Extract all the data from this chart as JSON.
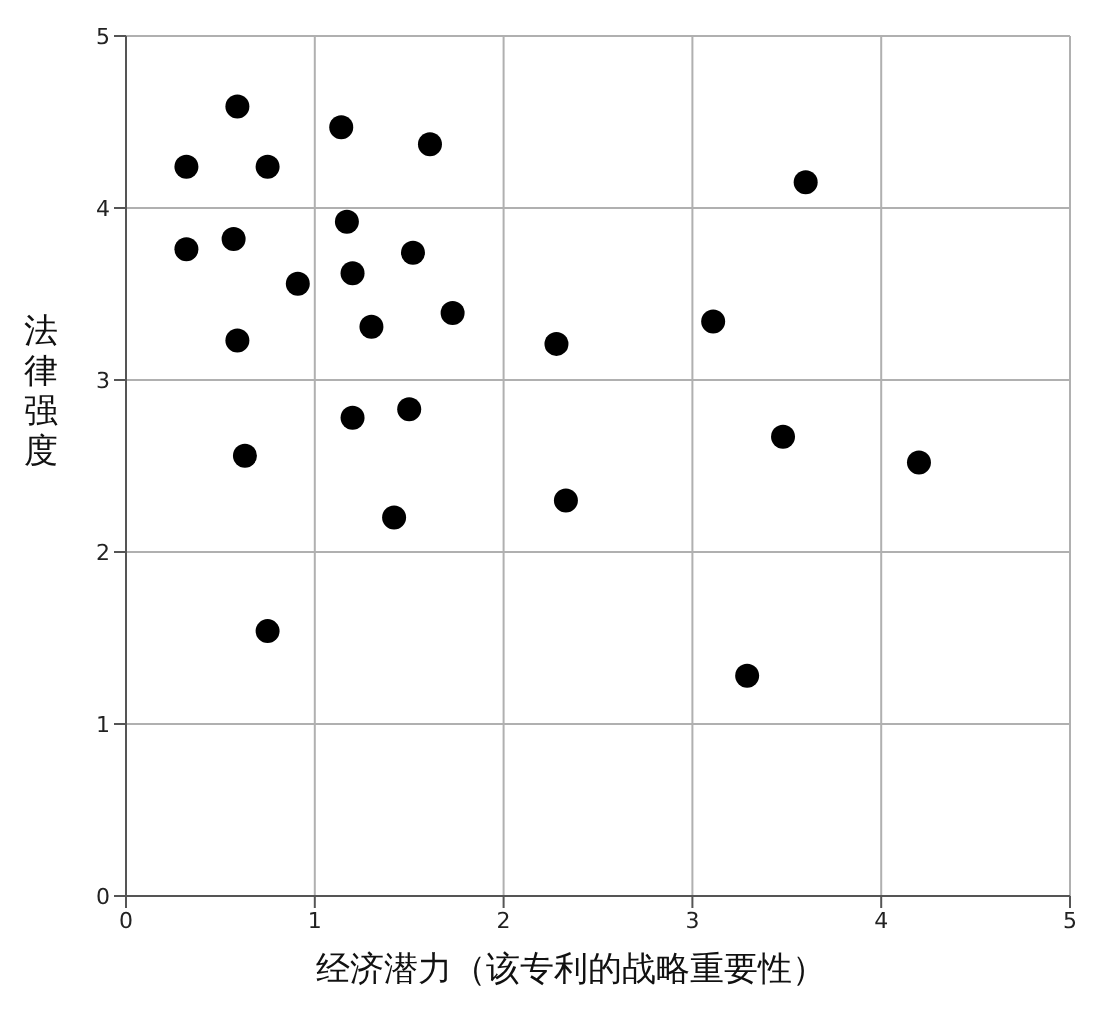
{
  "chart_data": {
    "type": "scatter",
    "xlabel": "经济潜力（该专利的战略重要性）",
    "ylabel": "法律强度",
    "xlim": [
      0,
      5
    ],
    "ylim": [
      0,
      5
    ],
    "xticks": [
      0,
      1,
      2,
      3,
      4,
      5
    ],
    "yticks": [
      0,
      1,
      2,
      3,
      4,
      5
    ],
    "grid": true,
    "marker": "circle",
    "series": [
      {
        "color": "#000000",
        "x": [
          0.59,
          0.32,
          0.75,
          1.14,
          1.61,
          3.6,
          0.32,
          0.57,
          1.17,
          0.91,
          1.2,
          1.52,
          1.73,
          1.3,
          0.59,
          2.28,
          3.11,
          1.2,
          1.5,
          0.63,
          3.48,
          4.2,
          2.33,
          1.42,
          0.75,
          3.29
        ],
        "values": [
          4.59,
          4.24,
          4.24,
          4.47,
          4.37,
          4.15,
          3.76,
          3.82,
          3.92,
          3.56,
          3.62,
          3.74,
          3.39,
          3.31,
          3.23,
          3.21,
          3.34,
          2.78,
          2.83,
          2.56,
          2.67,
          2.52,
          2.3,
          2.2,
          1.54,
          1.28
        ]
      }
    ]
  }
}
